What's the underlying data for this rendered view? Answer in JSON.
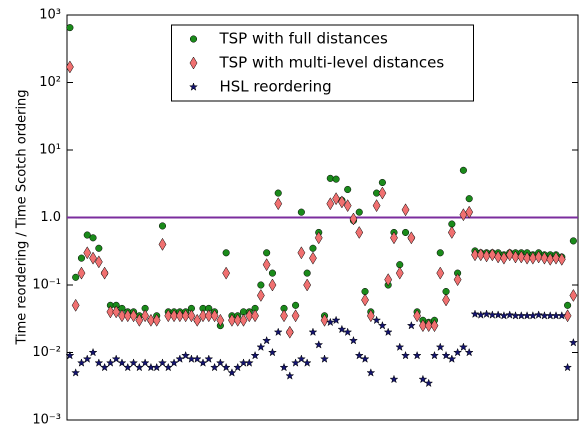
{
  "chart_data": {
    "type": "scatter",
    "y_label": "Time reordering / Time Scotch ordering",
    "log_y": true,
    "legend": "upper center",
    "xlim": [
      -0.5,
      87.8
    ],
    "ylim": [
      0.001,
      1000
    ],
    "yticks": [
      {
        "value": 0.001,
        "label": "10⁻³"
      },
      {
        "value": 0.01,
        "label": "10⁻²"
      },
      {
        "value": 0.1,
        "label": "10⁻¹"
      },
      {
        "value": 1,
        "label": "1.0"
      },
      {
        "value": 10,
        "label": "10¹"
      },
      {
        "value": 100,
        "label": "10²"
      },
      {
        "value": 1000,
        "label": "10³"
      }
    ],
    "hline": {
      "value": 1,
      "color": "#7b2d9e"
    },
    "x": [
      0,
      1,
      2,
      3,
      4,
      5,
      6,
      7,
      8,
      9,
      10,
      11,
      12,
      13,
      14,
      15,
      16,
      17,
      18,
      19,
      20,
      21,
      22,
      23,
      24,
      25,
      26,
      27,
      28,
      29,
      30,
      31,
      32,
      33,
      34,
      35,
      36,
      37,
      38,
      39,
      40,
      41,
      42,
      43,
      44,
      45,
      46,
      47,
      48,
      49,
      50,
      51,
      52,
      53,
      54,
      55,
      56,
      57,
      58,
      59,
      60,
      61,
      62,
      63,
      64,
      65,
      66,
      67,
      68,
      69,
      70,
      71,
      72,
      73,
      74,
      75,
      76,
      77,
      78,
      79,
      80,
      81,
      82,
      83,
      84,
      85,
      86,
      87
    ],
    "series": [
      {
        "name": "TSP with full distances",
        "color": "#1a8a1a",
        "marker": "circle",
        "values": [
          650,
          0.13,
          0.25,
          0.55,
          0.5,
          0.35,
          0.15,
          0.05,
          0.05,
          0.045,
          0.04,
          0.04,
          0.035,
          0.045,
          0.03,
          0.035,
          0.75,
          0.04,
          0.04,
          0.04,
          0.04,
          0.045,
          0.03,
          0.045,
          0.045,
          0.04,
          0.025,
          0.3,
          0.035,
          0.035,
          0.04,
          0.04,
          0.045,
          0.1,
          0.3,
          0.15,
          2.3,
          0.045,
          0.02,
          0.05,
          1.2,
          0.15,
          0.35,
          0.6,
          0.035,
          3.8,
          3.7,
          1.8,
          2.6,
          0.9,
          1.2,
          0.08,
          0.04,
          2.3,
          3.3,
          0.1,
          0.6,
          0.2,
          0.6,
          0.5,
          0.04,
          0.03,
          0.028,
          0.03,
          0.3,
          0.08,
          0.8,
          0.15,
          5,
          1.9,
          0.32,
          0.3,
          0.3,
          0.3,
          0.3,
          0.28,
          0.3,
          0.3,
          0.3,
          0.3,
          0.28,
          0.3,
          0.28,
          0.28,
          0.28,
          0.26,
          0.05,
          0.45
        ]
      },
      {
        "name": "TSP with multi-level distances",
        "color": "#f07070",
        "marker": "diamond",
        "values": [
          170,
          0.05,
          0.15,
          0.3,
          0.25,
          0.22,
          0.15,
          0.04,
          0.04,
          0.035,
          0.035,
          0.035,
          0.03,
          0.035,
          0.03,
          0.03,
          0.4,
          0.035,
          0.035,
          0.035,
          0.035,
          0.035,
          0.03,
          0.035,
          0.035,
          0.035,
          0.03,
          0.15,
          0.03,
          0.03,
          0.03,
          0.035,
          0.035,
          0.07,
          0.2,
          0.1,
          1.6,
          0.035,
          0.02,
          0.035,
          0.3,
          0.1,
          0.25,
          0.5,
          0.03,
          1.6,
          1.9,
          1.7,
          1.5,
          0.95,
          0.6,
          0.06,
          0.035,
          1.5,
          2.3,
          0.12,
          0.5,
          0.15,
          1.3,
          0.5,
          0.035,
          0.025,
          0.025,
          0.025,
          0.15,
          0.06,
          0.6,
          0.12,
          1.1,
          1.2,
          0.28,
          0.28,
          0.27,
          0.28,
          0.26,
          0.25,
          0.28,
          0.26,
          0.26,
          0.25,
          0.25,
          0.26,
          0.25,
          0.24,
          0.25,
          0.24,
          0.035,
          0.07
        ]
      },
      {
        "name": "HSL reordering",
        "color": "#14146e",
        "marker": "star",
        "values": [
          0.009,
          0.005,
          0.007,
          0.008,
          0.01,
          0.007,
          0.006,
          0.007,
          0.008,
          0.007,
          0.006,
          0.007,
          0.006,
          0.007,
          0.006,
          0.006,
          0.007,
          0.006,
          0.007,
          0.008,
          0.009,
          0.008,
          0.008,
          0.007,
          0.008,
          0.006,
          0.007,
          0.006,
          0.005,
          0.006,
          0.007,
          0.007,
          0.009,
          0.012,
          0.015,
          0.01,
          0.02,
          0.006,
          0.0045,
          0.007,
          0.008,
          0.007,
          0.02,
          0.013,
          0.008,
          0.028,
          0.03,
          0.022,
          0.02,
          0.015,
          0.009,
          0.008,
          0.005,
          0.03,
          0.025,
          0.02,
          0.004,
          0.012,
          0.009,
          0.025,
          0.009,
          0.004,
          0.0035,
          0.009,
          0.012,
          0.009,
          0.008,
          0.01,
          0.012,
          0.01,
          0.037,
          0.036,
          0.037,
          0.036,
          0.036,
          0.035,
          0.036,
          0.035,
          0.035,
          0.035,
          0.035,
          0.036,
          0.035,
          0.035,
          0.035,
          0.035,
          0.006,
          0.014
        ]
      }
    ]
  }
}
